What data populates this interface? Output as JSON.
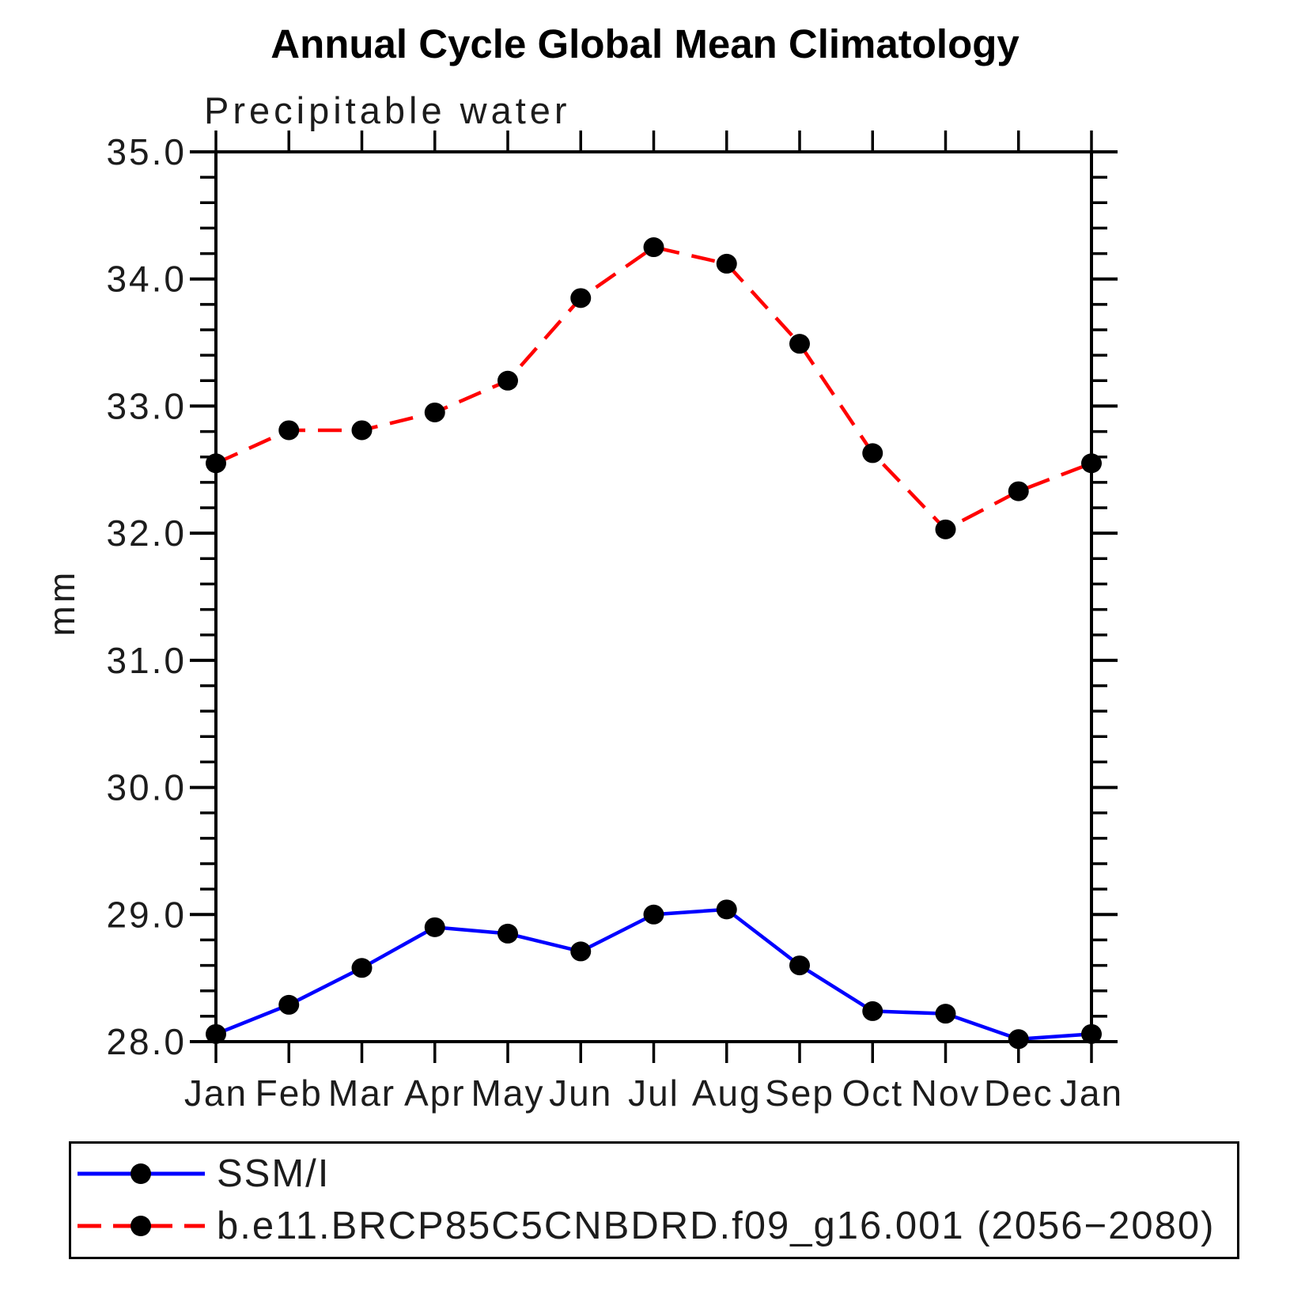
{
  "header": {
    "title": "Annual Cycle Global Mean Climatology",
    "subtitle": "Precipitable water"
  },
  "chart_data": {
    "type": "line",
    "title": "Annual Cycle Global Mean Climatology",
    "subtitle": "Precipitable water",
    "ylabel": "mm",
    "ylim": [
      28.0,
      35.0
    ],
    "ytick_interval_major": 1.0,
    "ytick_interval_minor": 0.2,
    "ytick_labels": [
      "28.0",
      "29.0",
      "30.0",
      "31.0",
      "32.0",
      "33.0",
      "34.0",
      "35.0"
    ],
    "x_categories": [
      "Jan",
      "Feb",
      "Mar",
      "Apr",
      "May",
      "Jun",
      "Jul",
      "Aug",
      "Sep",
      "Oct",
      "Nov",
      "Dec",
      "Jan"
    ],
    "grid": false,
    "legend_position": "bottom-left-box",
    "series": [
      {
        "name": "SSM/I",
        "line_color": "#0000ff",
        "line_style": "solid",
        "marker": "filled-circle",
        "marker_color": "#000000",
        "values": [
          28.06,
          28.29,
          28.58,
          28.9,
          28.85,
          28.71,
          29.0,
          29.04,
          28.6,
          28.24,
          28.22,
          28.02,
          28.06
        ]
      },
      {
        "name": "b.e11.BRCP85C5CNBDRD.f09_g16.001 (2056−2080)",
        "line_color": "#ff0000",
        "line_style": "dashed",
        "marker": "filled-circle",
        "marker_color": "#000000",
        "values": [
          32.55,
          32.81,
          32.81,
          32.95,
          33.2,
          33.85,
          34.25,
          34.12,
          33.49,
          32.63,
          32.03,
          32.33,
          32.55
        ]
      }
    ]
  },
  "colors": {
    "axis": "#000000",
    "text": "#000000",
    "ssmi_line": "#0000ff",
    "model_line": "#ff0000",
    "marker": "#000000",
    "background": "#ffffff"
  }
}
